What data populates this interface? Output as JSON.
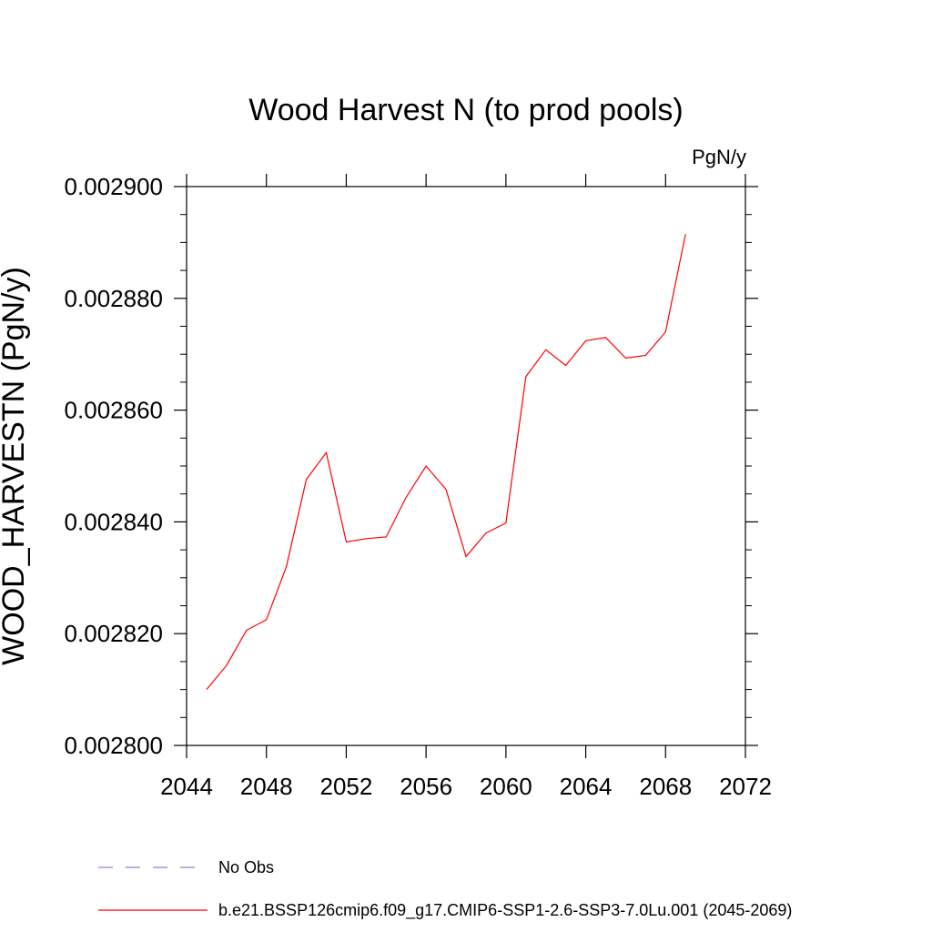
{
  "chart_data": {
    "type": "line",
    "title": "Wood Harvest N (to prod pools)",
    "units": "PgN/y",
    "ylabel": "WOOD_HARVESTN  (PgN/y)",
    "xlabel": "",
    "xlim": [
      2044,
      2072
    ],
    "ylim": [
      0.0028,
      0.0029
    ],
    "x_ticks": [
      "2044",
      "2048",
      "2052",
      "2056",
      "2060",
      "2064",
      "2068",
      "2072"
    ],
    "y_ticks": [
      "0.002800",
      "0.002820",
      "0.002840",
      "0.002860",
      "0.002880",
      "0.002900"
    ],
    "grid": false,
    "legend_position": "bottom",
    "series": [
      {
        "name": "b.e21.BSSP126cmip6.f09_g17.CMIP6-SSP1-2.6-SSP3-7.0Lu.001 (2045-2069)",
        "color": "#ff0000",
        "style": "solid",
        "x": [
          2045,
          2046,
          2047,
          2048,
          2049,
          2050,
          2051,
          2052,
          2053,
          2054,
          2055,
          2056,
          2057,
          2058,
          2059,
          2060,
          2061,
          2062,
          2063,
          2064,
          2065,
          2066,
          2067,
          2068,
          2069
        ],
        "values": [
          0.00281,
          0.0028143,
          0.0028206,
          0.0028225,
          0.002832,
          0.0028476,
          0.0028524,
          0.0028364,
          0.002837,
          0.0028373,
          0.0028444,
          0.00285,
          0.0028458,
          0.0028338,
          0.002838,
          0.0028398,
          0.002866,
          0.0028708,
          0.002868,
          0.0028724,
          0.002873,
          0.0028693,
          0.0028698,
          0.002874,
          0.0028915
        ]
      },
      {
        "name": "No Obs",
        "color": "#8f7fd8",
        "style": "dashed",
        "x": [],
        "values": []
      }
    ]
  }
}
